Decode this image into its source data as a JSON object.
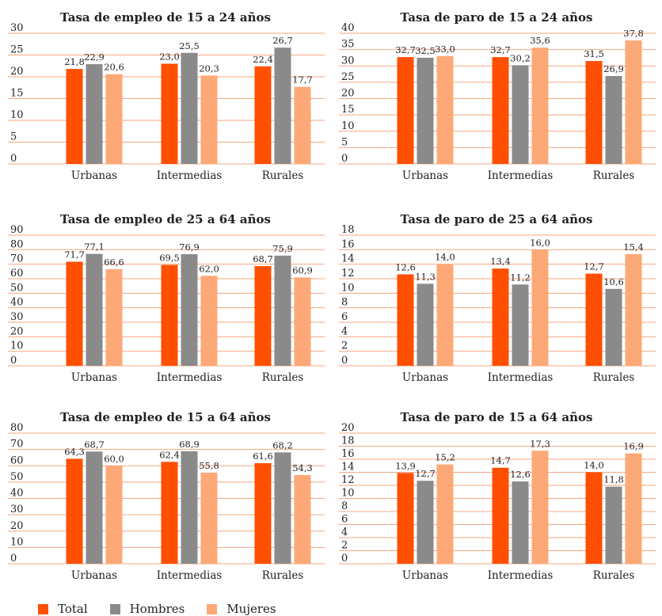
{
  "legend": [
    {
      "name": "Total",
      "color": "#ff4f00"
    },
    {
      "name": "Hombres",
      "color": "#8a8a8a"
    },
    {
      "name": "Mujeres",
      "color": "#fda877"
    }
  ],
  "colors": {
    "gridline": "#f5a782",
    "total": "#ff4f00",
    "hombres": "#8a8a8a",
    "mujeres": "#fda877"
  },
  "chart_data": [
    {
      "type": "bar",
      "title": "Tasa de empleo de 15 a 24 años",
      "categories": [
        "Urbanas",
        "Intermedias",
        "Rurales"
      ],
      "ylim": [
        0,
        30
      ],
      "yticks": [
        "0",
        "5",
        "10",
        "15",
        "20",
        "25",
        "30"
      ],
      "grid": true,
      "series": [
        {
          "name": "Total",
          "values": [
            21.8,
            23.0,
            22.4
          ],
          "labels": [
            "21,8",
            "23,0",
            "22,4"
          ]
        },
        {
          "name": "Hombres",
          "values": [
            22.9,
            25.5,
            26.7
          ],
          "labels": [
            "22,9",
            "25,5",
            "26,7"
          ]
        },
        {
          "name": "Mujeres",
          "values": [
            20.6,
            20.3,
            17.7
          ],
          "labels": [
            "20,6",
            "20,3",
            "17,7"
          ]
        }
      ]
    },
    {
      "type": "bar",
      "title": "Tasa de paro de 15 a 24 años",
      "categories": [
        "Urbanas",
        "Intermedias",
        "Rurales"
      ],
      "ylim": [
        0,
        40
      ],
      "yticks": [
        "0",
        "5",
        "10",
        "15",
        "20",
        "25",
        "30",
        "35",
        "40"
      ],
      "grid": true,
      "series": [
        {
          "name": "Total",
          "values": [
            32.7,
            32.7,
            31.5
          ],
          "labels": [
            "32,7",
            "32,7",
            "31,5"
          ]
        },
        {
          "name": "Hombres",
          "values": [
            32.5,
            30.2,
            26.9
          ],
          "labels": [
            "32,5",
            "30,2",
            "26,9"
          ]
        },
        {
          "name": "Mujeres",
          "values": [
            33.0,
            35.6,
            37.8
          ],
          "labels": [
            "33,0",
            "35,6",
            "37,8"
          ]
        }
      ]
    },
    {
      "type": "bar",
      "title": "Tasa de empleo de 25 a 64 años",
      "categories": [
        "Urbanas",
        "Intermedias",
        "Rurales"
      ],
      "ylim": [
        0,
        90
      ],
      "yticks": [
        "0",
        "10",
        "20",
        "30",
        "40",
        "50",
        "60",
        "70",
        "80",
        "90"
      ],
      "grid": true,
      "series": [
        {
          "name": "Total",
          "values": [
            71.7,
            69.5,
            68.7
          ],
          "labels": [
            "71,7",
            "69,5",
            "68,7"
          ]
        },
        {
          "name": "Hombres",
          "values": [
            77.1,
            76.9,
            75.9
          ],
          "labels": [
            "77,1",
            "76,9",
            "75,9"
          ]
        },
        {
          "name": "Mujeres",
          "values": [
            66.6,
            62.0,
            60.9
          ],
          "labels": [
            "66,6",
            "62,0",
            "60,9"
          ]
        }
      ]
    },
    {
      "type": "bar",
      "title": "Tasa de paro de 25 a 64 años",
      "categories": [
        "Urbanas",
        "Intermedias",
        "Rurales"
      ],
      "ylim": [
        0,
        18
      ],
      "yticks": [
        "0",
        "2",
        "4",
        "6",
        "8",
        "10",
        "12",
        "14",
        "16",
        "18"
      ],
      "grid": true,
      "series": [
        {
          "name": "Total",
          "values": [
            12.6,
            13.4,
            12.7
          ],
          "labels": [
            "12,6",
            "13,4",
            "12,7"
          ]
        },
        {
          "name": "Hombres",
          "values": [
            11.3,
            11.2,
            10.6
          ],
          "labels": [
            "11,3",
            "11,2",
            "10,6"
          ]
        },
        {
          "name": "Mujeres",
          "values": [
            14.0,
            16.0,
            15.4
          ],
          "labels": [
            "14,0",
            "16,0",
            "15,4"
          ]
        }
      ]
    },
    {
      "type": "bar",
      "title": "Tasa de empleo de 15 a 64 años",
      "categories": [
        "Urbanas",
        "Intermedias",
        "Rurales"
      ],
      "ylim": [
        0,
        80
      ],
      "yticks": [
        "0",
        "10",
        "20",
        "30",
        "40",
        "50",
        "60",
        "70",
        "80"
      ],
      "grid": true,
      "series": [
        {
          "name": "Total",
          "values": [
            64.3,
            62.4,
            61.6
          ],
          "labels": [
            "64,3",
            "62,4",
            "61,6"
          ]
        },
        {
          "name": "Hombres",
          "values": [
            68.7,
            68.9,
            68.2
          ],
          "labels": [
            "68,7",
            "68,9",
            "68,2"
          ]
        },
        {
          "name": "Mujeres",
          "values": [
            60.0,
            55.8,
            54.3
          ],
          "labels": [
            "60,0",
            "55,8",
            "54,3"
          ]
        }
      ]
    },
    {
      "type": "bar",
      "title": "Tasa de paro de 15 a 64 años",
      "categories": [
        "Urbanas",
        "Intermedias",
        "Rurales"
      ],
      "ylim": [
        0,
        20
      ],
      "yticks": [
        "0",
        "2",
        "4",
        "6",
        "8",
        "10",
        "12",
        "14",
        "16",
        "18",
        "20"
      ],
      "grid": true,
      "series": [
        {
          "name": "Total",
          "values": [
            13.9,
            14.7,
            14.0
          ],
          "labels": [
            "13,9",
            "14,7",
            "14,0"
          ]
        },
        {
          "name": "Hombres",
          "values": [
            12.7,
            12.6,
            11.8
          ],
          "labels": [
            "12,7",
            "12,6",
            "11,8"
          ]
        },
        {
          "name": "Mujeres",
          "values": [
            15.2,
            17.3,
            16.9
          ],
          "labels": [
            "15,2",
            "17,3",
            "16,9"
          ]
        }
      ]
    }
  ]
}
